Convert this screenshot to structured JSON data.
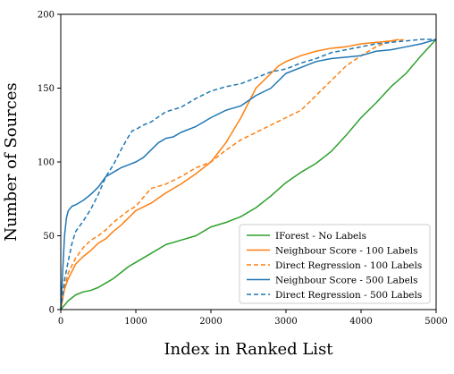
{
  "chart_data": {
    "type": "line",
    "xlabel": "Index in Ranked List",
    "ylabel": "Number of Sources",
    "xlim": [
      0,
      5000
    ],
    "ylim": [
      0,
      200
    ],
    "xticks": [
      0,
      1000,
      2000,
      3000,
      4000,
      5000
    ],
    "yticks": [
      0,
      50,
      100,
      150,
      200
    ],
    "grid": false,
    "legend_position": "lower-right",
    "series": [
      {
        "name": "IForest - No Labels",
        "color": "#2ca02c",
        "dash": "solid",
        "x": [
          0,
          100,
          200,
          300,
          400,
          500,
          600,
          700,
          800,
          900,
          1000,
          1200,
          1400,
          1600,
          1800,
          2000,
          2200,
          2400,
          2600,
          2800,
          3000,
          3200,
          3400,
          3600,
          3800,
          4000,
          4200,
          4400,
          4600,
          4800,
          5000
        ],
        "y": [
          0,
          6,
          10,
          12,
          13,
          15,
          18,
          21,
          25,
          29,
          32,
          38,
          44,
          47,
          50,
          56,
          59,
          63,
          69,
          77,
          86,
          93,
          99,
          107,
          118,
          130,
          140,
          151,
          160,
          172,
          183
        ]
      },
      {
        "name": "Neighbour Score - 100 Labels",
        "color": "#ff7f0e",
        "dash": "solid",
        "x": [
          0,
          50,
          100,
          150,
          200,
          300,
          400,
          500,
          600,
          700,
          800,
          900,
          1000,
          1200,
          1400,
          1600,
          1800,
          2000,
          2200,
          2400,
          2600,
          2800,
          2900,
          3000,
          3200,
          3400,
          3600,
          3800,
          4000,
          4200,
          4400,
          4500
        ],
        "y": [
          0,
          14,
          21,
          26,
          31,
          36,
          40,
          45,
          48,
          53,
          57,
          62,
          67,
          72,
          79,
          85,
          92,
          100,
          113,
          130,
          150,
          160,
          165,
          168,
          172,
          175,
          177,
          178,
          180,
          181,
          182,
          183
        ]
      },
      {
        "name": "Direct Regression - 100 Labels",
        "color": "#ff7f0e",
        "dash": "dashed",
        "x": [
          0,
          50,
          100,
          150,
          200,
          300,
          400,
          500,
          600,
          700,
          800,
          900,
          1000,
          1100,
          1200,
          1400,
          1600,
          1800,
          2000,
          2200,
          2400,
          2600,
          2800,
          3000,
          3200,
          3400,
          3600,
          3800,
          4000,
          4200,
          4400,
          4600
        ],
        "y": [
          0,
          15,
          25,
          30,
          35,
          42,
          47,
          50,
          54,
          59,
          63,
          67,
          70,
          76,
          82,
          85,
          90,
          96,
          100,
          108,
          115,
          120,
          125,
          130,
          135,
          145,
          155,
          165,
          172,
          178,
          182,
          183
        ]
      },
      {
        "name": "Neighbour Score - 500 Labels",
        "color": "#1f77b4",
        "dash": "solid",
        "x": [
          0,
          25,
          50,
          75,
          100,
          150,
          200,
          300,
          400,
          500,
          600,
          700,
          800,
          900,
          1000,
          1100,
          1200,
          1300,
          1400,
          1500,
          1600,
          1800,
          2000,
          2200,
          2400,
          2600,
          2800,
          3000,
          3200,
          3400,
          3600,
          3800,
          4000,
          4200,
          4400,
          4600,
          4800,
          5000
        ],
        "y": [
          0,
          25,
          50,
          62,
          67,
          70,
          71,
          74,
          78,
          83,
          90,
          93,
          96,
          98,
          100,
          103,
          108,
          113,
          116,
          117,
          120,
          124,
          130,
          135,
          138,
          145,
          150,
          160,
          164,
          168,
          170,
          171,
          172,
          175,
          176,
          178,
          180,
          183
        ]
      },
      {
        "name": "Direct Regression - 500 Labels",
        "color": "#1f77b4",
        "dash": "dashed",
        "x": [
          0,
          50,
          100,
          150,
          200,
          300,
          400,
          500,
          600,
          700,
          800,
          900,
          950,
          1000,
          1100,
          1200,
          1400,
          1600,
          1800,
          2000,
          2200,
          2400,
          2600,
          2800,
          3000,
          3200,
          3400,
          3600,
          3800,
          4000,
          4200,
          4400,
          4600,
          4800,
          5000
        ],
        "y": [
          0,
          20,
          33,
          45,
          53,
          60,
          68,
          78,
          90,
          98,
          108,
          117,
          121,
          122,
          125,
          127,
          134,
          137,
          143,
          148,
          151,
          153,
          157,
          161,
          163,
          167,
          170,
          174,
          176,
          178,
          180,
          181,
          182,
          183,
          183
        ]
      }
    ]
  }
}
